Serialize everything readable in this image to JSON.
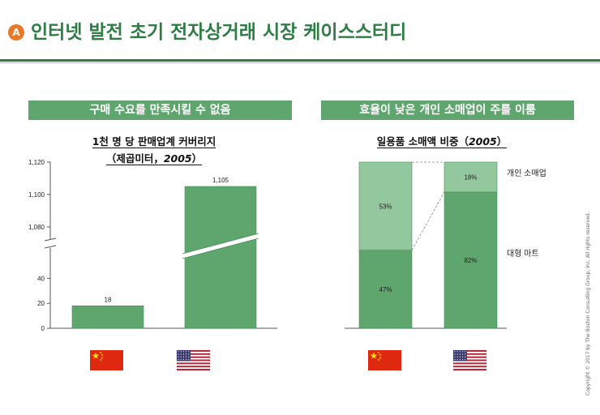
{
  "page": {
    "badge": "A",
    "title": "인터넷 발전 초기 전자상거래 시장 케이스스터디",
    "copyright": "Copyright © 2017 by The Boston Consulting Group, Inc. All rights reserved."
  },
  "left_panel": {
    "banner": "구매 수요를 만족시킬 수 없음",
    "heading_line1": "1천 명 당 판매업계 커버리지",
    "heading_line2_prefix": "（제곱미터，",
    "heading_line2_year": "2005",
    "heading_line2_suffix": "）"
  },
  "right_panel": {
    "banner": "효율이 낮은 개인 소매업이 주를 이룸",
    "heading_prefix": "일용품 소매액 비중（",
    "heading_year": "2005",
    "heading_suffix": "）"
  },
  "flags": {
    "china": "china-flag-icon",
    "usa": "usa-flag-icon"
  },
  "colors": {
    "accent": "#2e7d45",
    "banner": "#5fa56e",
    "bar_dark": "#5fa56e",
    "bar_light": "#93c79e",
    "badge": "#e8792a"
  },
  "chart_data": [
    {
      "type": "bar",
      "categories": [
        "China",
        "USA"
      ],
      "values": [
        18,
        1105
      ],
      "data_labels": [
        "18",
        "1,105"
      ],
      "axis_break": true,
      "lower_ticks": [
        "0",
        "20",
        "40"
      ],
      "upper_ticks": [
        "1,080",
        "1,100",
        "1,120"
      ],
      "ylim_lower": [
        0,
        50
      ],
      "ylim_upper": [
        1075,
        1120
      ],
      "title": "1천 명 당 판매업계 커버리지（제곱미터，2005）",
      "grid": false
    },
    {
      "type": "bar",
      "stacked": true,
      "percent": true,
      "categories": [
        "China",
        "USA"
      ],
      "series": [
        {
          "name": "대형 마트",
          "values": [
            47,
            82
          ],
          "labels": [
            "47%",
            "82%"
          ]
        },
        {
          "name": "개인 소매업",
          "values": [
            53,
            18
          ],
          "labels": [
            "53%",
            "18%"
          ]
        }
      ],
      "title": "일용품 소매액 비중（2005）",
      "grid": false
    }
  ]
}
